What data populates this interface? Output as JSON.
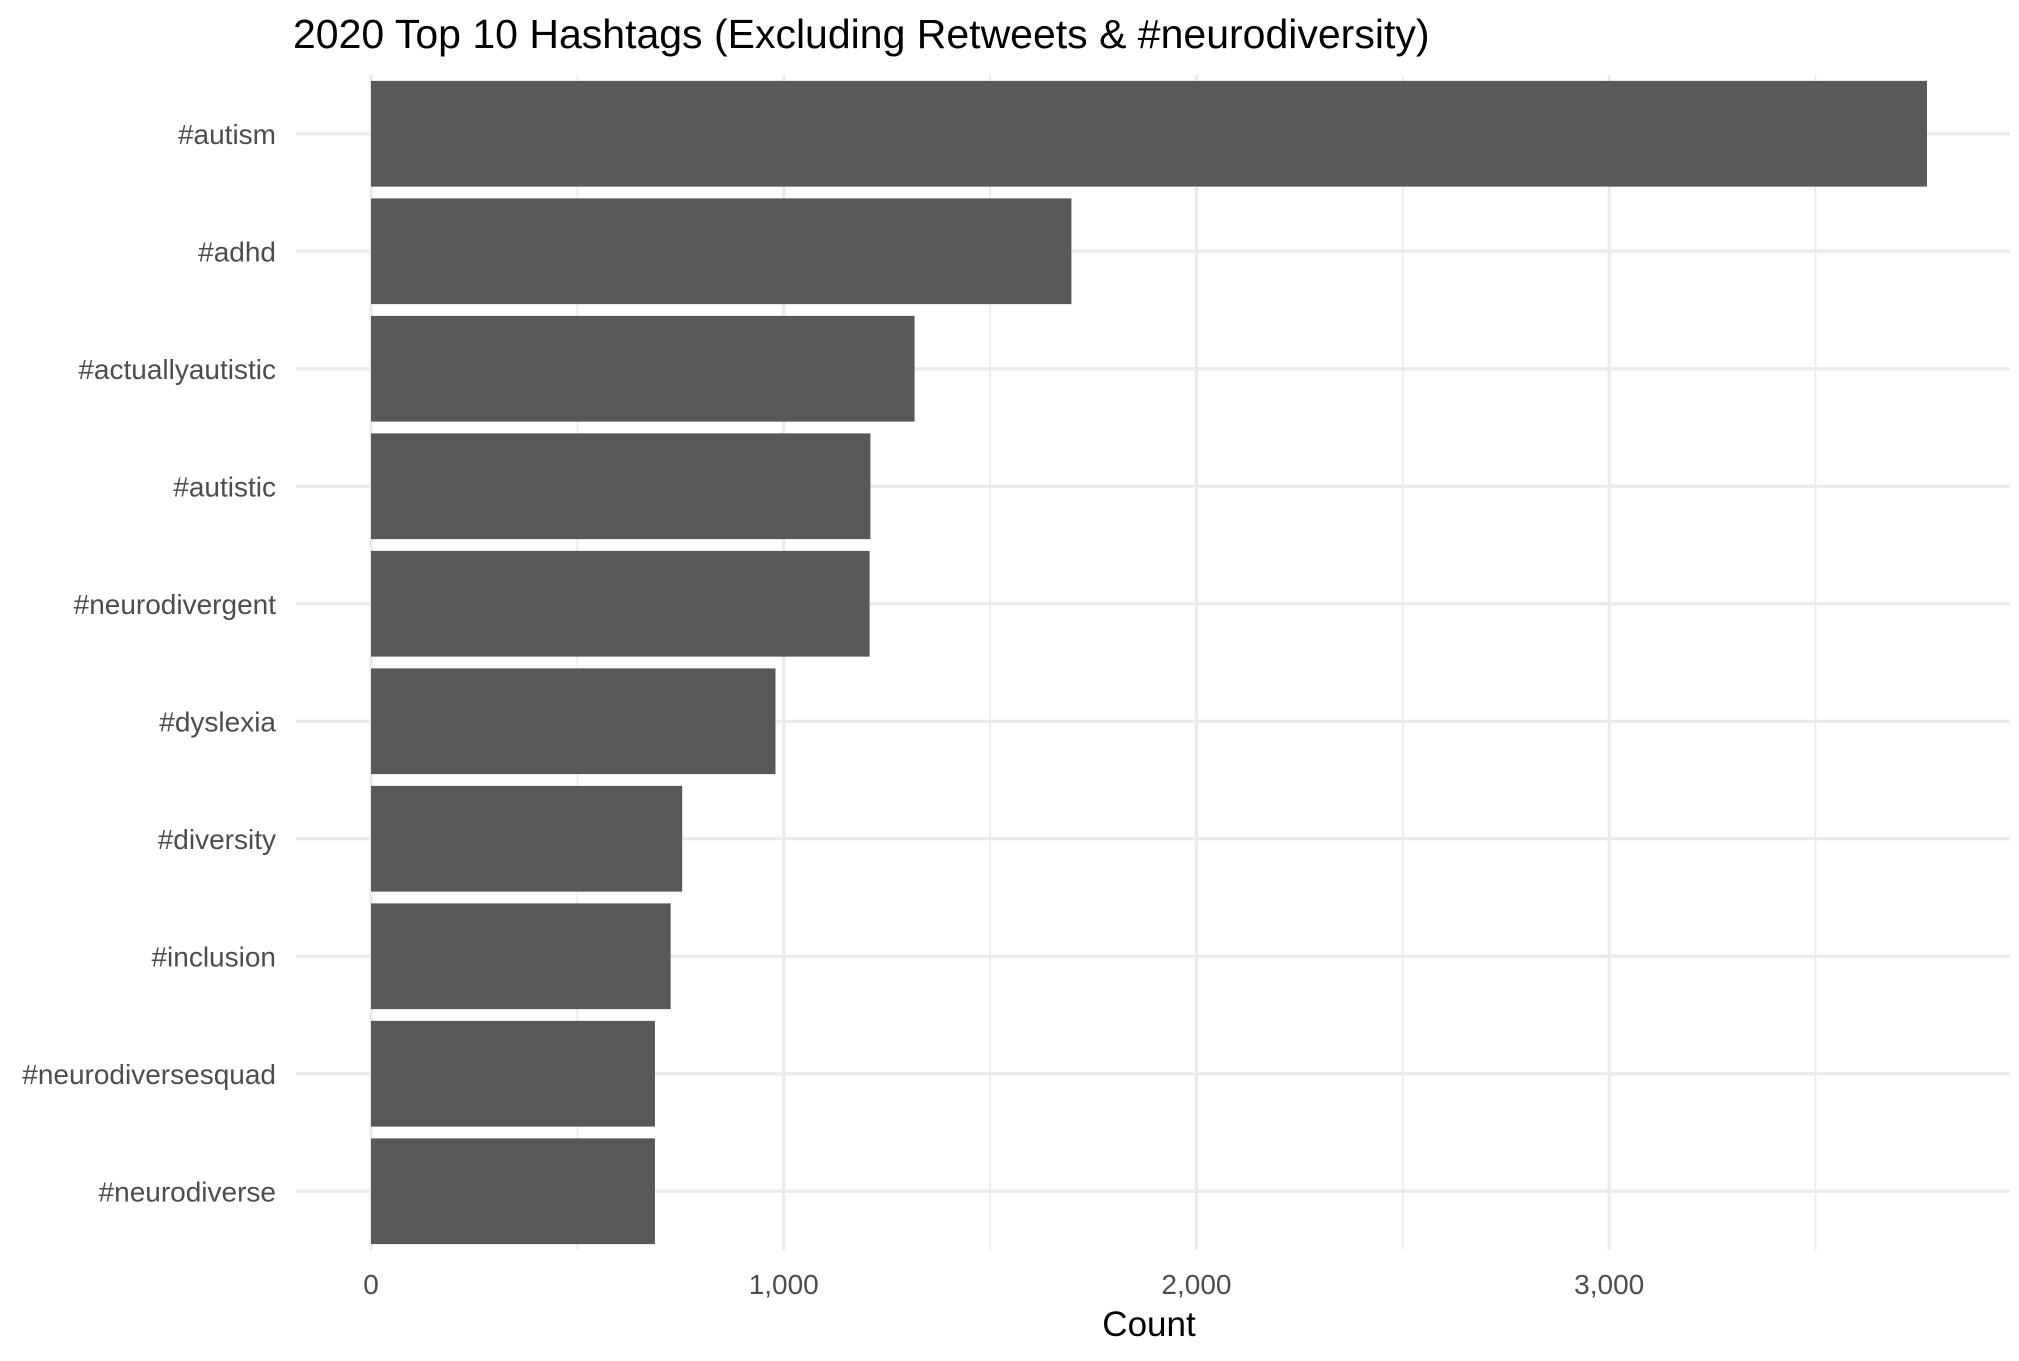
{
  "chart_data": {
    "type": "bar",
    "orientation": "horizontal",
    "title": "2020 Top 10 Hashtags (Excluding Retweets & #neurodiversity)",
    "xlabel": "Count",
    "ylabel": "",
    "categories": [
      "#autism",
      "#adhd",
      "#actuallyautistic",
      "#autistic",
      "#neurodivergent",
      "#dyslexia",
      "#diversity",
      "#inclusion",
      "#neurodiversesquad",
      "#neurodiverse"
    ],
    "values": [
      3770,
      1697,
      1317,
      1210,
      1208,
      980,
      754,
      726,
      688,
      688
    ],
    "xlim": [
      0,
      3770
    ],
    "xticks": [
      0,
      1000,
      2000,
      3000
    ],
    "xtick_labels": [
      "0",
      "1,000",
      "2,000",
      "3,000"
    ],
    "grid": true,
    "colors": {
      "bar": "#595959",
      "grid": "#ebebeb"
    }
  }
}
